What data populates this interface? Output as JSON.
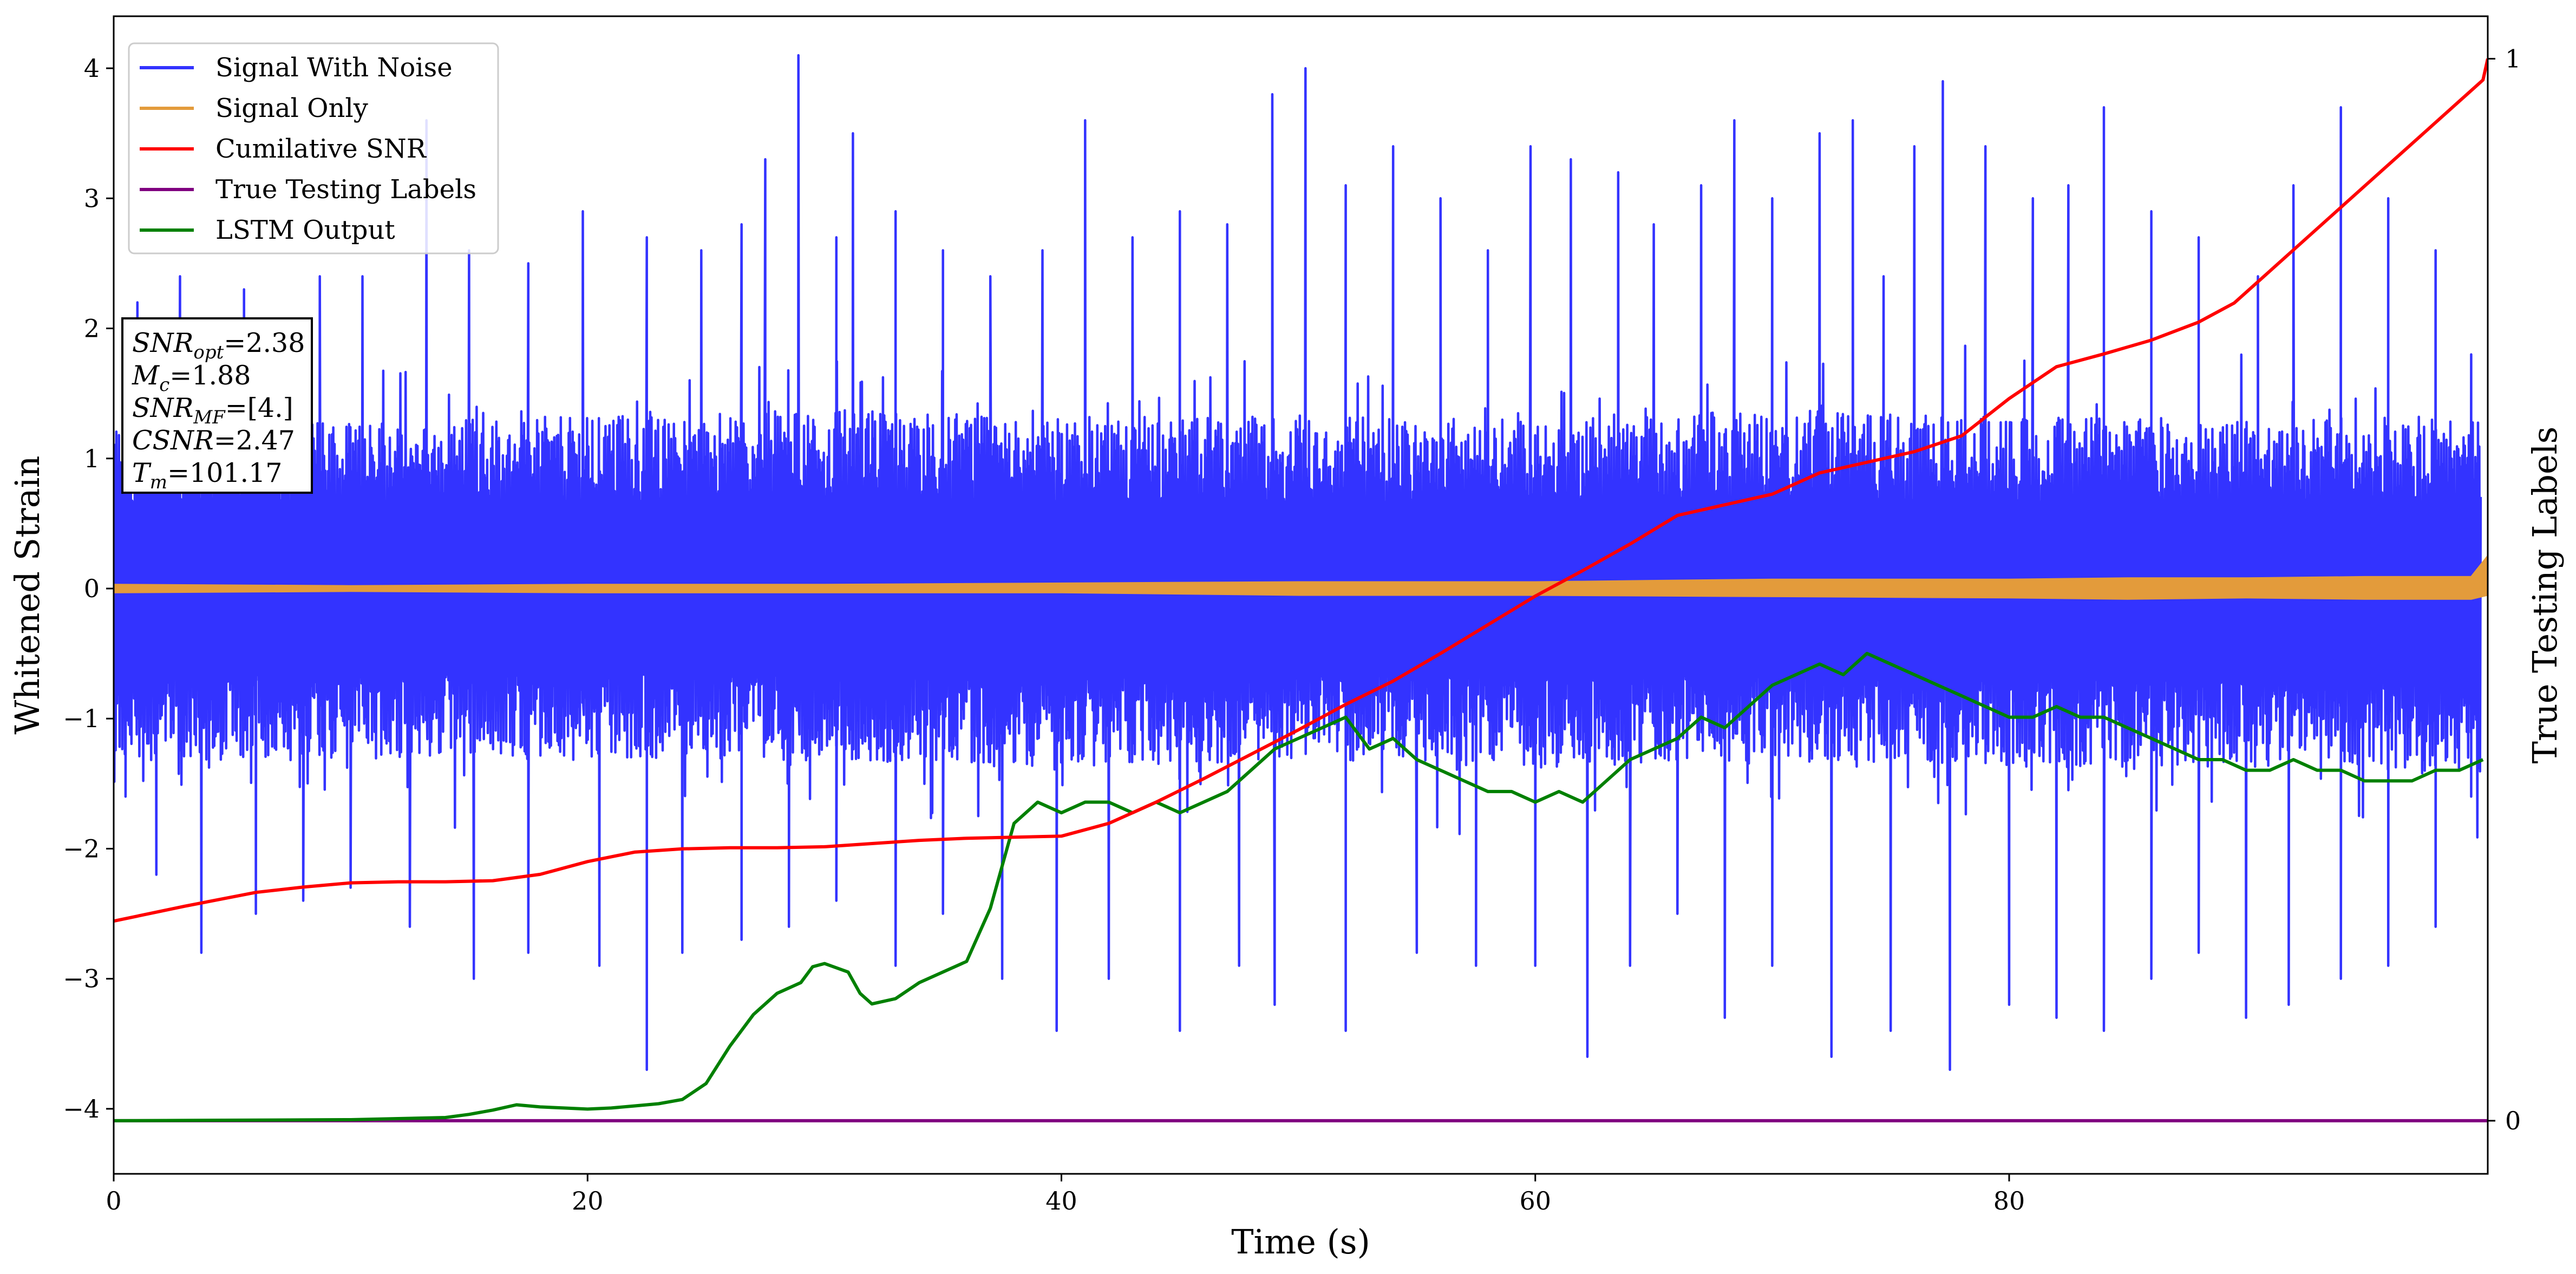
{
  "chart_data": {
    "type": "line",
    "title": "",
    "xlabel": "Time (s)",
    "ylabel": "Whitened Strain",
    "y2label": "True Testing Labels",
    "xlim": [
      0,
      100.2
    ],
    "ylim": [
      -4.5,
      4.4
    ],
    "y2lim": [
      -0.05,
      1.04
    ],
    "x_ticks": [
      0,
      20,
      40,
      60,
      80
    ],
    "x_tick_labels": [
      "0",
      "20",
      "40",
      "60",
      "80"
    ],
    "y_ticks": [
      -4,
      -3,
      -2,
      -1,
      0,
      1,
      2,
      3,
      4
    ],
    "y_tick_labels": [
      "−4",
      "−3",
      "−2",
      "−1",
      "0",
      "1",
      "2",
      "3",
      "4"
    ],
    "y2_ticks": [
      0,
      1
    ],
    "y2_tick_labels": [
      "0",
      "1"
    ],
    "grid": false,
    "legend_position": "top-left",
    "series": [
      {
        "name": "Signal With Noise",
        "axis": "left",
        "color": "#3333ff",
        "kind": "noise-band",
        "envelope": {
          "x": [
            0,
            10,
            20,
            30,
            40,
            50,
            60,
            70,
            80,
            90,
            100
          ],
          "lower": [
            -1.2,
            -1.2,
            -1.2,
            -1.2,
            -1.25,
            -1.2,
            -1.25,
            -1.2,
            -1.25,
            -1.25,
            -1.3
          ],
          "upper": [
            1.2,
            1.2,
            1.2,
            1.25,
            1.2,
            1.2,
            1.2,
            1.25,
            1.2,
            1.2,
            1.2
          ]
        },
        "peaks": [
          [
            1.0,
            2.2
          ],
          [
            2.8,
            2.4
          ],
          [
            5.5,
            2.3
          ],
          [
            8.7,
            2.4
          ],
          [
            10.5,
            2.4
          ],
          [
            13.2,
            3.6
          ],
          [
            15.0,
            2.6
          ],
          [
            17.5,
            2.5
          ],
          [
            19.8,
            2.9
          ],
          [
            22.5,
            2.7
          ],
          [
            24.8,
            2.6
          ],
          [
            26.5,
            2.8
          ],
          [
            27.5,
            3.3
          ],
          [
            28.9,
            4.1
          ],
          [
            30.5,
            2.7
          ],
          [
            31.2,
            3.5
          ],
          [
            33.0,
            2.9
          ],
          [
            35.0,
            2.6
          ],
          [
            37.0,
            2.4
          ],
          [
            39.2,
            2.6
          ],
          [
            41.0,
            3.6
          ],
          [
            43.0,
            2.7
          ],
          [
            45.0,
            2.9
          ],
          [
            47.0,
            2.8
          ],
          [
            48.9,
            3.8
          ],
          [
            50.3,
            4.0
          ],
          [
            52.0,
            3.1
          ],
          [
            54.0,
            3.4
          ],
          [
            56.0,
            3.0
          ],
          [
            58.0,
            2.6
          ],
          [
            59.8,
            3.4
          ],
          [
            61.5,
            3.3
          ],
          [
            63.5,
            3.2
          ],
          [
            65.0,
            2.8
          ],
          [
            67.0,
            3.1
          ],
          [
            68.4,
            3.6
          ],
          [
            70.0,
            3.0
          ],
          [
            72.0,
            3.5
          ],
          [
            73.4,
            3.6
          ],
          [
            74.7,
            2.4
          ],
          [
            76.0,
            3.4
          ],
          [
            77.2,
            3.9
          ],
          [
            79.0,
            3.4
          ],
          [
            81.0,
            3.0
          ],
          [
            82.5,
            3.1
          ],
          [
            84.0,
            3.7
          ],
          [
            86.0,
            2.9
          ],
          [
            88.0,
            2.7
          ],
          [
            90.5,
            2.4
          ],
          [
            92.0,
            3.1
          ],
          [
            94.0,
            3.7
          ],
          [
            96.0,
            3.0
          ],
          [
            98.0,
            2.6
          ],
          [
            99.5,
            1.8
          ]
        ],
        "troughs": [
          [
            0.5,
            -1.6
          ],
          [
            1.8,
            -2.2
          ],
          [
            3.7,
            -2.8
          ],
          [
            6.0,
            -2.5
          ],
          [
            8.0,
            -2.4
          ],
          [
            10.0,
            -2.3
          ],
          [
            12.5,
            -2.6
          ],
          [
            15.2,
            -3.0
          ],
          [
            17.5,
            -2.8
          ],
          [
            20.5,
            -2.9
          ],
          [
            22.5,
            -3.7
          ],
          [
            24.0,
            -2.8
          ],
          [
            26.5,
            -2.7
          ],
          [
            28.5,
            -2.6
          ],
          [
            30.5,
            -2.4
          ],
          [
            33.0,
            -2.9
          ],
          [
            35.0,
            -2.5
          ],
          [
            37.5,
            -3.0
          ],
          [
            39.8,
            -3.4
          ],
          [
            42.0,
            -3.0
          ],
          [
            45.0,
            -3.4
          ],
          [
            47.5,
            -2.9
          ],
          [
            49.0,
            -3.2
          ],
          [
            52.0,
            -3.4
          ],
          [
            55.0,
            -2.8
          ],
          [
            57.5,
            -2.9
          ],
          [
            60.0,
            -2.9
          ],
          [
            62.2,
            -3.6
          ],
          [
            64.0,
            -2.9
          ],
          [
            66.0,
            -2.5
          ],
          [
            68.0,
            -3.3
          ],
          [
            70.0,
            -2.9
          ],
          [
            72.5,
            -3.6
          ],
          [
            75.0,
            -3.4
          ],
          [
            77.5,
            -3.7
          ],
          [
            80.0,
            -3.2
          ],
          [
            82.0,
            -3.3
          ],
          [
            84.0,
            -3.4
          ],
          [
            86.0,
            -3.0
          ],
          [
            88.0,
            -2.8
          ],
          [
            90.0,
            -3.3
          ],
          [
            91.8,
            -3.2
          ],
          [
            94.0,
            -3.0
          ],
          [
            96.0,
            -2.9
          ],
          [
            98.0,
            -2.6
          ],
          [
            99.5,
            -1.6
          ]
        ]
      },
      {
        "name": "Signal Only",
        "axis": "left",
        "color": "#e39b3b",
        "kind": "band",
        "x": [
          0,
          10,
          20,
          30,
          40,
          50,
          60,
          70,
          80,
          85,
          90,
          95,
          99.5,
          100.2
        ],
        "lower": [
          -0.03,
          -0.02,
          -0.03,
          -0.03,
          -0.03,
          -0.05,
          -0.05,
          -0.06,
          -0.07,
          -0.08,
          -0.07,
          -0.08,
          -0.08,
          -0.05
        ],
        "upper": [
          0.03,
          0.02,
          0.03,
          0.03,
          0.04,
          0.05,
          0.05,
          0.07,
          0.07,
          0.08,
          0.08,
          0.09,
          0.09,
          0.25
        ]
      },
      {
        "name": "Cumilative SNR",
        "axis": "right",
        "color": "#ff0000",
        "x": [
          0,
          3,
          6,
          8,
          10,
          12,
          14,
          16,
          18,
          20,
          22,
          24,
          26,
          28,
          30,
          32,
          34,
          36,
          38,
          40,
          42,
          44,
          46,
          48,
          50,
          52,
          54,
          56,
          58,
          60,
          62,
          64,
          66,
          68,
          70,
          72,
          74,
          76,
          78,
          80,
          82,
          84,
          86,
          88,
          89.5,
          91,
          93,
          95,
          97,
          99,
          100,
          100.2
        ],
        "y": [
          0.188,
          0.202,
          0.215,
          0.22,
          0.224,
          0.225,
          0.225,
          0.226,
          0.232,
          0.244,
          0.253,
          0.256,
          0.257,
          0.257,
          0.258,
          0.261,
          0.264,
          0.266,
          0.267,
          0.268,
          0.28,
          0.3,
          0.322,
          0.345,
          0.368,
          0.392,
          0.414,
          0.44,
          0.467,
          0.494,
          0.518,
          0.543,
          0.57,
          0.58,
          0.59,
          0.61,
          0.62,
          0.63,
          0.645,
          0.68,
          0.71,
          0.722,
          0.735,
          0.752,
          0.77,
          0.8,
          0.84,
          0.88,
          0.92,
          0.96,
          0.98,
          1.0
        ]
      },
      {
        "name": "True Testing Labels",
        "axis": "right",
        "color": "#800080",
        "x": [
          0,
          100.2
        ],
        "y": [
          0,
          0
        ]
      },
      {
        "name": "LSTM Output",
        "axis": "right",
        "color": "#008000",
        "x": [
          0,
          10,
          12,
          14,
          15,
          16,
          17,
          18,
          19,
          20,
          21,
          22,
          23,
          24,
          25,
          26,
          27,
          28,
          29,
          29.5,
          30,
          31,
          31.5,
          32,
          33,
          34,
          35,
          36,
          37,
          38,
          39,
          40,
          41,
          42,
          43,
          44,
          45,
          46,
          47,
          48,
          49,
          50,
          51,
          52,
          53,
          54,
          55,
          56,
          57,
          58,
          59,
          60,
          61,
          62,
          63,
          64,
          65,
          66,
          67,
          68,
          69,
          70,
          71,
          72,
          73,
          74,
          75,
          76,
          77,
          78,
          79,
          80,
          81,
          82,
          83,
          84,
          85,
          86,
          87,
          88,
          89,
          90,
          91,
          92,
          93,
          94,
          95,
          96,
          97,
          98,
          99,
          100
        ],
        "y": [
          0,
          0.001,
          0.002,
          0.003,
          0.006,
          0.01,
          0.015,
          0.013,
          0.012,
          0.011,
          0.012,
          0.014,
          0.016,
          0.02,
          0.035,
          0.07,
          0.1,
          0.12,
          0.13,
          0.145,
          0.148,
          0.14,
          0.12,
          0.11,
          0.115,
          0.13,
          0.14,
          0.15,
          0.2,
          0.28,
          0.3,
          0.29,
          0.3,
          0.3,
          0.29,
          0.3,
          0.29,
          0.3,
          0.31,
          0.33,
          0.35,
          0.36,
          0.37,
          0.38,
          0.35,
          0.36,
          0.34,
          0.33,
          0.32,
          0.31,
          0.31,
          0.3,
          0.31,
          0.3,
          0.32,
          0.34,
          0.35,
          0.36,
          0.38,
          0.37,
          0.39,
          0.41,
          0.42,
          0.43,
          0.42,
          0.44,
          0.43,
          0.42,
          0.41,
          0.4,
          0.39,
          0.38,
          0.38,
          0.39,
          0.38,
          0.38,
          0.37,
          0.36,
          0.35,
          0.34,
          0.34,
          0.33,
          0.33,
          0.34,
          0.33,
          0.33,
          0.32,
          0.32,
          0.32,
          0.33,
          0.33,
          0.34
        ]
      }
    ],
    "annotation": {
      "lines": [
        {
          "var": "SNR",
          "sub": "opt",
          "value": "=2.38"
        },
        {
          "var": "M",
          "sub": "c",
          "value": "=1.88"
        },
        {
          "var": "SNR",
          "sub": "MF",
          "value": "=[4.]"
        },
        {
          "var": "CSNR",
          "sub": "",
          "value": "=2.47"
        },
        {
          "var": "T",
          "sub": "m",
          "value": "=101.17"
        }
      ]
    }
  }
}
